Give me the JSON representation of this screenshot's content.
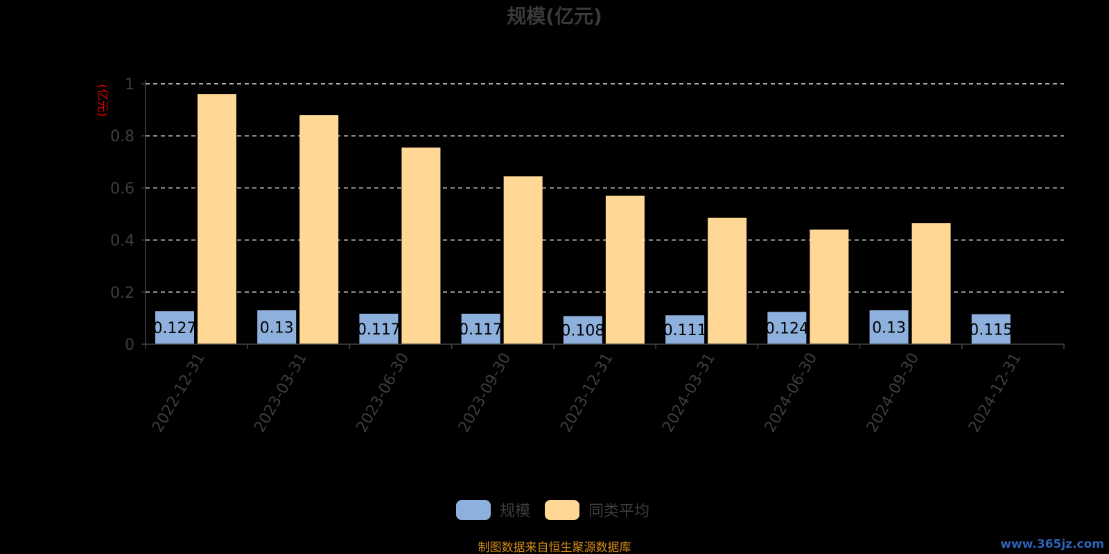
{
  "chart_data": {
    "type": "bar",
    "title": "规模(亿元)",
    "ylabel": "(亿元)",
    "xlabel": "",
    "categories": [
      "2022-12-31",
      "2023-03-31",
      "2023-06-30",
      "2023-09-30",
      "2023-12-31",
      "2024-03-31",
      "2024-06-30",
      "2024-09-30",
      "2024-12-31"
    ],
    "series": [
      {
        "name": "规模",
        "color": "#8eb0dd",
        "values": [
          0.127,
          0.13,
          0.117,
          0.117,
          0.108,
          0.111,
          0.124,
          0.13,
          0.115
        ],
        "show_labels": true
      },
      {
        "name": "同类平均",
        "color": "#ffd896",
        "values": [
          0.96,
          0.88,
          0.755,
          0.645,
          0.57,
          0.485,
          0.44,
          0.465,
          null
        ],
        "show_labels": false
      }
    ],
    "ylim": [
      0,
      1
    ],
    "yticks": [
      "0",
      "0.2",
      "0.4",
      "0.6",
      "0.8",
      "1"
    ],
    "grid": true,
    "legend_position": "bottom-center"
  },
  "footer": {
    "source": "制图数据来自恒生聚源数据库",
    "watermark": "www.365jz.com"
  }
}
